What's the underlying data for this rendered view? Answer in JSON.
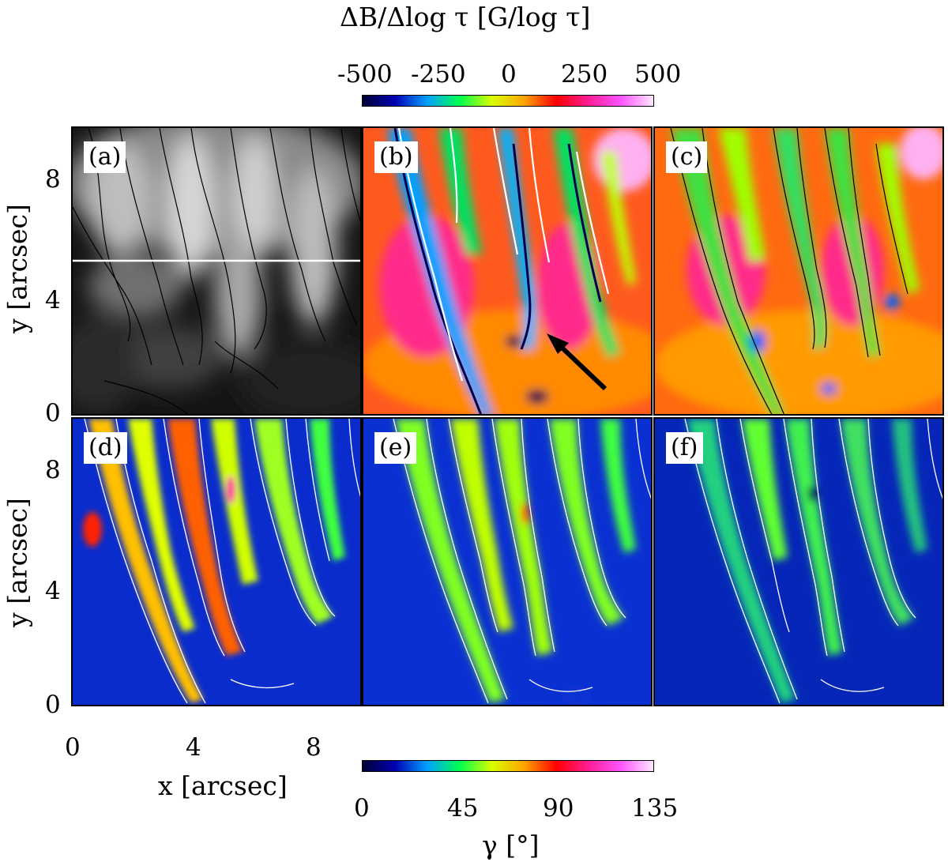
{
  "top_colorbar": {
    "title": "ΔB/Δlog τ [G/log τ]",
    "ticks": [
      "-500",
      "-250",
      "0",
      "250",
      "500"
    ],
    "gradient": [
      "#000033",
      "#0000b4",
      "#00a0ff",
      "#00ff50",
      "#d8ff00",
      "#ffa500",
      "#ff0000",
      "#ff1e96",
      "#ff55ff",
      "#ffe6ff"
    ]
  },
  "bottom_colorbar": {
    "title": "γ [°]",
    "ticks": [
      "0",
      "45",
      "90",
      "135"
    ],
    "gradient": [
      "#000033",
      "#0000b4",
      "#00a0ff",
      "#00ff50",
      "#d8ff00",
      "#ffa500",
      "#ff0000",
      "#ff1e96",
      "#ff55ff",
      "#ffe6ff"
    ]
  },
  "axes": {
    "ylabel": "y [arcsec]",
    "xlabel": "x [arcsec]",
    "y_ticks": [
      "0",
      "4",
      "8"
    ],
    "x_ticks": [
      "0",
      "4",
      "8"
    ]
  },
  "panels": [
    {
      "label": "(a)",
      "kind": "continuum-intensity"
    },
    {
      "label": "(b)",
      "kind": "field-gradient"
    },
    {
      "label": "(c)",
      "kind": "field-gradient"
    },
    {
      "label": "(d)",
      "kind": "inclination"
    },
    {
      "label": "(e)",
      "kind": "inclination"
    },
    {
      "label": "(f)",
      "kind": "inclination"
    }
  ]
}
